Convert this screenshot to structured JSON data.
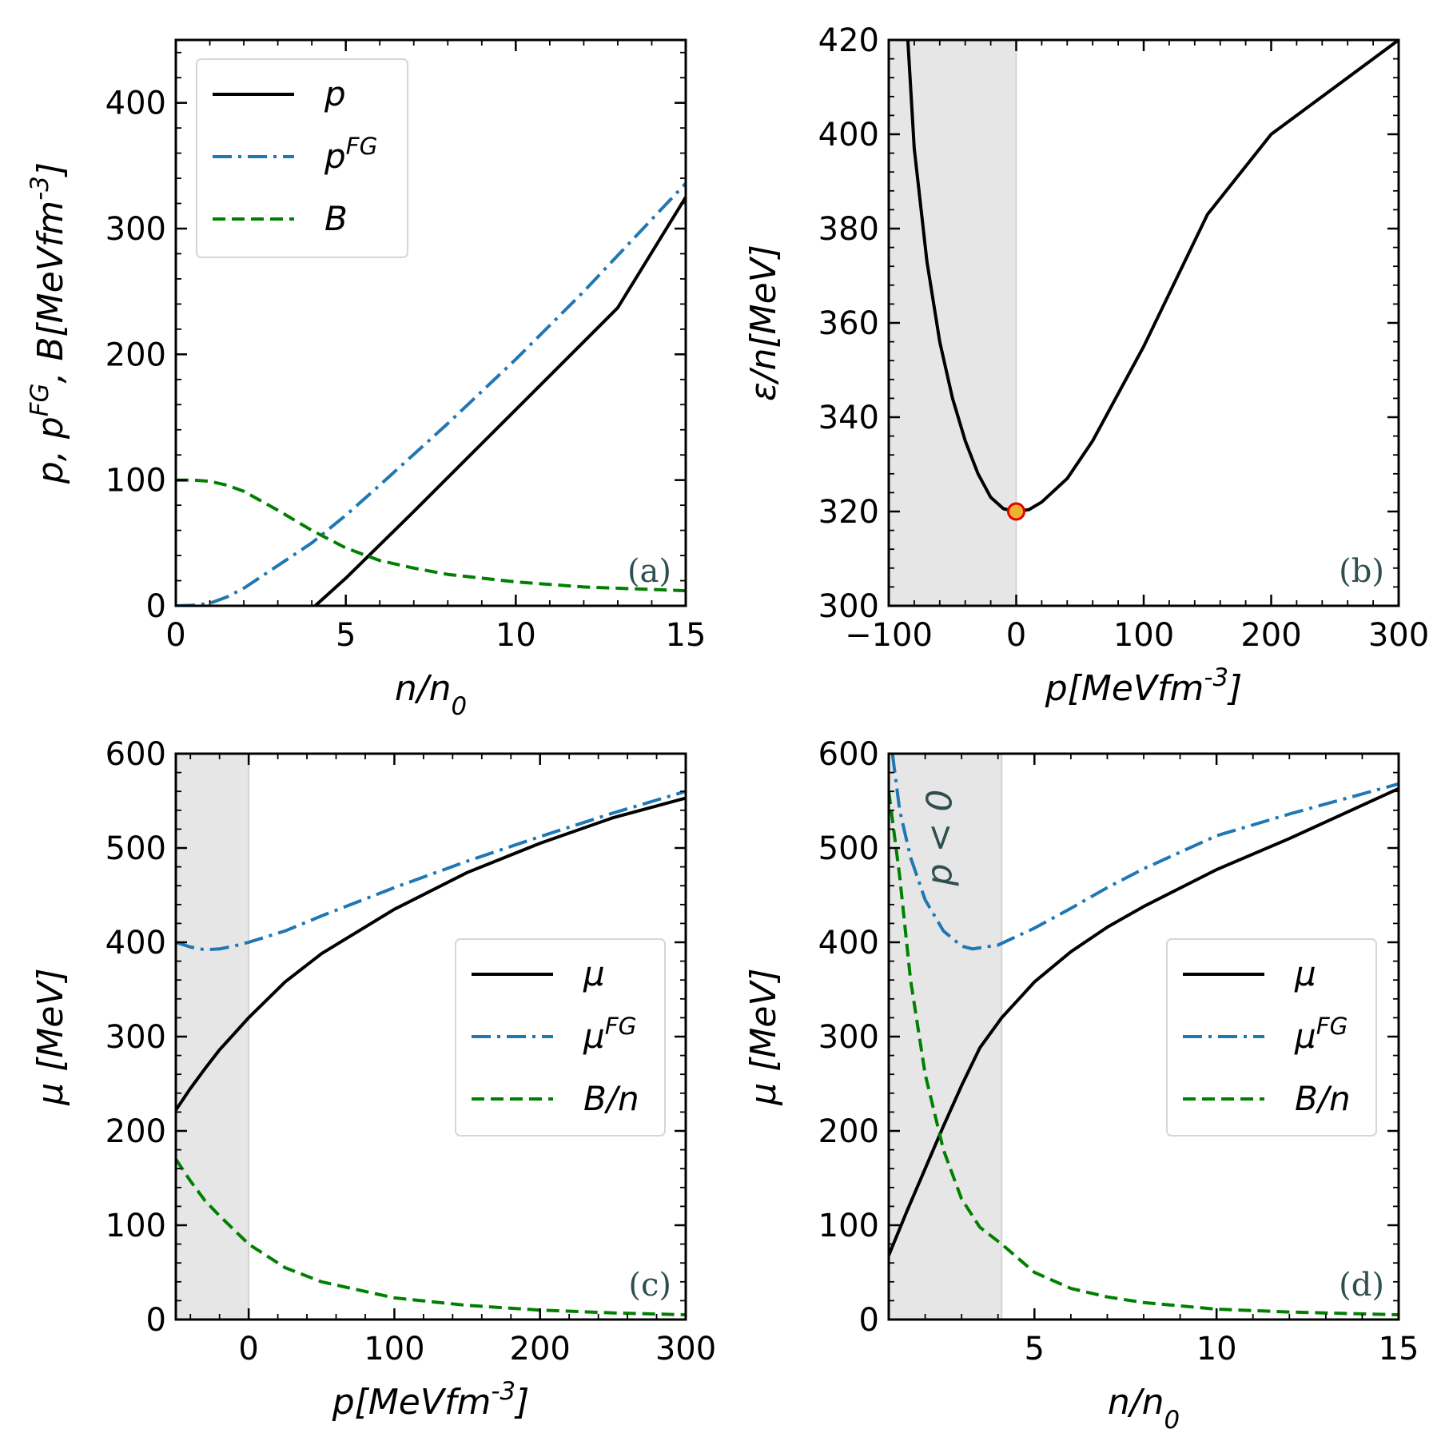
{
  "chart_data": [
    {
      "panel_label": "(a)",
      "type": "line",
      "xlabel": "n/n₀",
      "ylabel": "p, p^{FG}, B[MeVfm^{-3}]",
      "xlim": [
        0,
        15
      ],
      "ylim": [
        0,
        450
      ],
      "xticks": [
        "0",
        "5",
        "10",
        "15"
      ],
      "yticks": [
        "0",
        "100",
        "200",
        "300",
        "400"
      ],
      "shaded_x": null,
      "legend_position": "upper-left",
      "series": [
        {
          "name": "p",
          "style": "solid",
          "color": "#000000",
          "x": [
            4.1,
            5,
            7,
            9,
            11,
            13,
            15
          ],
          "y": [
            0,
            22,
            75,
            129,
            183,
            237,
            325
          ]
        },
        {
          "name": "p^{FG}",
          "style": "dashdot",
          "color": "#1f77b4",
          "x": [
            0,
            0.5,
            1,
            1.5,
            2,
            3,
            4,
            5,
            6,
            8,
            10,
            12,
            15
          ],
          "y": [
            0,
            0.5,
            2,
            7,
            14,
            32,
            50,
            72,
            96,
            145,
            196,
            250,
            336
          ]
        },
        {
          "name": "B",
          "style": "dashed",
          "color": "#008000",
          "x": [
            0,
            0.5,
            1,
            1.5,
            2,
            3,
            4,
            5,
            6,
            7,
            8,
            10,
            12,
            15
          ],
          "y": [
            100,
            100,
            99,
            96,
            91,
            76,
            60,
            46,
            36,
            30,
            25,
            19,
            15,
            12
          ]
        }
      ],
      "markers": []
    },
    {
      "panel_label": "(b)",
      "type": "line",
      "xlabel": "p[MeVfm^{-3}]",
      "ylabel": "ε/n[MeV]",
      "xlim": [
        -100,
        300
      ],
      "ylim": [
        300,
        420
      ],
      "xticks": [
        "−100",
        "0",
        "100",
        "200",
        "300"
      ],
      "yticks": [
        "300",
        "320",
        "340",
        "360",
        "380",
        "400",
        "420"
      ],
      "shaded_x": [
        -100,
        0
      ],
      "legend_position": "none",
      "series": [
        {
          "name": "ε/n",
          "style": "solid",
          "color": "#000000",
          "x": [
            -85,
            -80,
            -70,
            -60,
            -50,
            -40,
            -30,
            -20,
            -10,
            0,
            10,
            20,
            40,
            60,
            80,
            100,
            150,
            200,
            250,
            300
          ],
          "y": [
            420,
            397,
            373,
            356,
            344,
            335,
            328,
            323,
            320.6,
            320,
            320.4,
            322,
            327,
            335,
            345,
            355,
            383,
            400,
            410,
            420
          ]
        }
      ],
      "markers": [
        {
          "x": 0,
          "y": 320,
          "fill": "#f0b030",
          "stroke": "#e60000"
        }
      ]
    },
    {
      "panel_label": "(c)",
      "type": "line",
      "xlabel": "p[MeVfm^{-3}]",
      "ylabel": "μ [MeV]",
      "xlim": [
        -50,
        300
      ],
      "ylim": [
        0,
        600
      ],
      "xticks": [
        "0",
        "100",
        "200",
        "300"
      ],
      "yticks": [
        "0",
        "100",
        "200",
        "300",
        "400",
        "500",
        "600"
      ],
      "shaded_x": [
        -50,
        0
      ],
      "legend_position": "center-right",
      "series": [
        {
          "name": "μ",
          "style": "solid",
          "color": "#000000",
          "x": [
            -50,
            -40,
            -30,
            -20,
            -10,
            0,
            25,
            50,
            100,
            150,
            200,
            250,
            300
          ],
          "y": [
            222,
            245,
            266,
            286,
            303,
            320,
            358,
            388,
            435,
            474,
            505,
            532,
            553
          ]
        },
        {
          "name": "μ^{FG}",
          "style": "dashdot",
          "color": "#1f77b4",
          "x": [
            -50,
            -40,
            -30,
            -20,
            -10,
            0,
            25,
            50,
            100,
            150,
            200,
            250,
            300
          ],
          "y": [
            400,
            395,
            392,
            393,
            396,
            400,
            412,
            428,
            458,
            486,
            512,
            537,
            560
          ]
        },
        {
          "name": "B/n",
          "style": "dashed",
          "color": "#008000",
          "x": [
            -50,
            -40,
            -30,
            -20,
            -10,
            0,
            25,
            50,
            100,
            150,
            200,
            250,
            300
          ],
          "y": [
            170,
            147,
            126,
            110,
            95,
            80,
            55,
            40,
            23,
            15,
            10,
            7,
            5
          ]
        }
      ],
      "markers": []
    },
    {
      "panel_label": "(d)",
      "type": "line",
      "xlabel": "n/n₀",
      "ylabel": "μ [MeV]",
      "xlim": [
        1,
        15
      ],
      "ylim": [
        0,
        600
      ],
      "xticks": [
        "5",
        "10",
        "15"
      ],
      "yticks": [
        "0",
        "100",
        "200",
        "300",
        "400",
        "500",
        "600"
      ],
      "shaded_x": [
        1,
        4.1
      ],
      "annotation": "p < 0",
      "legend_position": "center-right",
      "series": [
        {
          "name": "μ",
          "style": "solid",
          "color": "#000000",
          "x": [
            1,
            1.5,
            2,
            2.5,
            3,
            3.5,
            4.1,
            5,
            6,
            7,
            8,
            10,
            12,
            15
          ],
          "y": [
            68,
            115,
            160,
            205,
            248,
            288,
            320,
            358,
            390,
            416,
            438,
            477,
            510,
            563
          ]
        },
        {
          "name": "μ^{FG}",
          "style": "dashdot",
          "color": "#1f77b4",
          "x": [
            1.1,
            1.3,
            1.6,
            2,
            2.5,
            3,
            3.3,
            4,
            5,
            6,
            7,
            8,
            10,
            12,
            15
          ],
          "y": [
            600,
            540,
            490,
            445,
            412,
            396,
            393,
            397,
            415,
            436,
            458,
            478,
            513,
            536,
            568
          ]
        },
        {
          "name": "B/n",
          "style": "dashed",
          "color": "#008000",
          "x": [
            1,
            1.3,
            1.6,
            2,
            2.5,
            3,
            3.5,
            4.1,
            5,
            6,
            7,
            8,
            10,
            12,
            15
          ],
          "y": [
            560,
            470,
            360,
            260,
            180,
            128,
            98,
            80,
            50,
            33,
            24,
            18,
            11,
            8,
            5
          ]
        }
      ],
      "markers": []
    }
  ]
}
